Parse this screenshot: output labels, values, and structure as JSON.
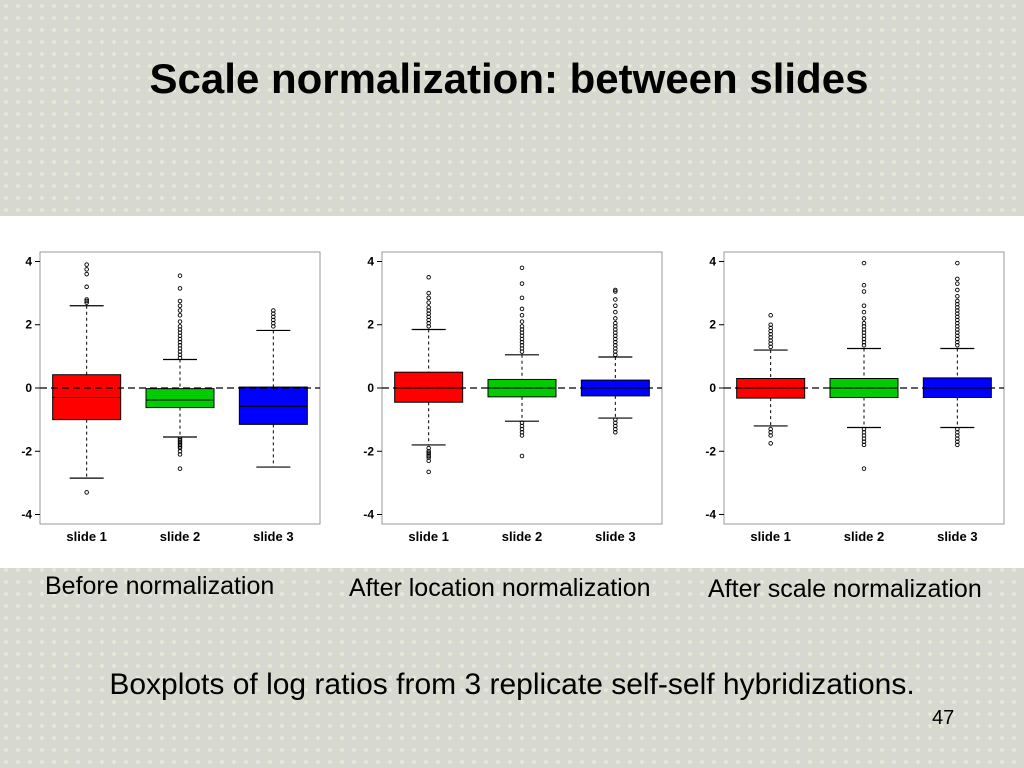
{
  "slide": {
    "title": "Scale normalization: between slides",
    "subtitle": "Boxplots of log ratios from 3 replicate self-self hybridizations.",
    "page_number": "47"
  },
  "colors": {
    "slide 1": "#ff0000",
    "slide 2": "#00cc00",
    "slide 3": "#0000ff",
    "background": "#d7d9d1"
  },
  "chart_data": [
    {
      "type": "boxplot",
      "caption": "Before normalization",
      "categories": [
        "slide 1",
        "slide 2",
        "slide 3"
      ],
      "ylim": [
        -4.3,
        4.3
      ],
      "yticks": [
        -4,
        -2,
        0,
        2,
        4
      ],
      "reference_line": 0,
      "boxes": [
        {
          "name": "slide 1",
          "q1": -1.0,
          "median": -0.3,
          "q3": 0.42,
          "whisker_low": -2.85,
          "whisker_high": 2.6,
          "outliers": [
            -3.3,
            2.7,
            2.75,
            2.8,
            3.2,
            3.6,
            3.75,
            3.9
          ]
        },
        {
          "name": "slide 2",
          "q1": -0.62,
          "median": -0.38,
          "q3": -0.02,
          "whisker_low": -1.55,
          "whisker_high": 0.9,
          "outliers": [
            -1.6,
            -1.65,
            -1.7,
            -1.75,
            -1.8,
            -1.85,
            -1.9,
            -2.0,
            -2.1,
            -2.55,
            0.95,
            1.05,
            1.15,
            1.25,
            1.35,
            1.45,
            1.55,
            1.65,
            1.75,
            1.85,
            1.95,
            2.1,
            2.3,
            2.45,
            2.6,
            2.75,
            3.15,
            3.55
          ]
        },
        {
          "name": "slide 3",
          "q1": -1.15,
          "median": -0.58,
          "q3": 0.03,
          "whisker_low": -2.5,
          "whisker_high": 1.82,
          "outliers": [
            1.95,
            2.05,
            2.15,
            2.25,
            2.35,
            2.45
          ]
        }
      ]
    },
    {
      "type": "boxplot",
      "caption": "After location normalization",
      "categories": [
        "slide 1",
        "slide 2",
        "slide 3"
      ],
      "ylim": [
        -4.3,
        4.3
      ],
      "yticks": [
        -4,
        -2,
        0,
        2,
        4
      ],
      "reference_line": 0,
      "boxes": [
        {
          "name": "slide 1",
          "q1": -0.45,
          "median": 0.0,
          "q3": 0.5,
          "whisker_low": -1.8,
          "whisker_high": 1.85,
          "outliers": [
            -1.9,
            -2.0,
            -2.05,
            -2.1,
            -2.15,
            -2.2,
            -2.3,
            -2.65,
            1.95,
            2.05,
            2.15,
            2.25,
            2.35,
            2.45,
            2.55,
            2.7,
            2.85,
            3.0,
            3.5
          ]
        },
        {
          "name": "slide 2",
          "q1": -0.28,
          "median": 0.0,
          "q3": 0.27,
          "whisker_low": -1.05,
          "whisker_high": 1.05,
          "outliers": [
            -1.1,
            -1.2,
            -1.3,
            -1.4,
            -1.5,
            -2.15,
            1.15,
            1.25,
            1.35,
            1.45,
            1.55,
            1.65,
            1.75,
            1.85,
            1.95,
            2.1,
            2.3,
            2.5,
            2.85,
            3.3,
            3.8
          ]
        },
        {
          "name": "slide 3",
          "q1": -0.25,
          "median": 0.0,
          "q3": 0.25,
          "whisker_low": -0.95,
          "whisker_high": 0.98,
          "outliers": [
            -1.0,
            -1.1,
            -1.2,
            -1.3,
            -1.4,
            1.05,
            1.15,
            1.25,
            1.35,
            1.45,
            1.55,
            1.65,
            1.75,
            1.85,
            1.95,
            2.05,
            2.2,
            2.4,
            2.6,
            2.8,
            3.05,
            3.1
          ]
        }
      ]
    },
    {
      "type": "boxplot",
      "caption": "After scale normalization",
      "categories": [
        "slide 1",
        "slide 2",
        "slide 3"
      ],
      "ylim": [
        -4.3,
        4.3
      ],
      "yticks": [
        -4,
        -2,
        0,
        2,
        4
      ],
      "reference_line": 0,
      "boxes": [
        {
          "name": "slide 1",
          "q1": -0.32,
          "median": 0.0,
          "q3": 0.3,
          "whisker_low": -1.2,
          "whisker_high": 1.2,
          "outliers": [
            -1.3,
            -1.4,
            -1.5,
            -1.75,
            1.3,
            1.4,
            1.5,
            1.6,
            1.7,
            1.8,
            1.9,
            2.0,
            2.3
          ]
        },
        {
          "name": "slide 2",
          "q1": -0.3,
          "median": 0.0,
          "q3": 0.3,
          "whisker_low": -1.25,
          "whisker_high": 1.25,
          "outliers": [
            -1.3,
            -1.4,
            -1.5,
            -1.6,
            -1.7,
            -1.8,
            -2.55,
            1.35,
            1.45,
            1.55,
            1.65,
            1.75,
            1.85,
            1.95,
            2.05,
            2.2,
            2.4,
            2.6,
            3.05,
            3.25,
            3.95
          ]
        },
        {
          "name": "slide 3",
          "q1": -0.3,
          "median": 0.0,
          "q3": 0.32,
          "whisker_low": -1.25,
          "whisker_high": 1.25,
          "outliers": [
            -1.3,
            -1.4,
            -1.5,
            -1.6,
            -1.7,
            -1.8,
            1.35,
            1.45,
            1.55,
            1.65,
            1.75,
            1.85,
            1.95,
            2.05,
            2.15,
            2.25,
            2.35,
            2.45,
            2.55,
            2.65,
            2.75,
            2.9,
            3.1,
            3.3,
            3.45,
            3.95
          ]
        }
      ]
    }
  ]
}
